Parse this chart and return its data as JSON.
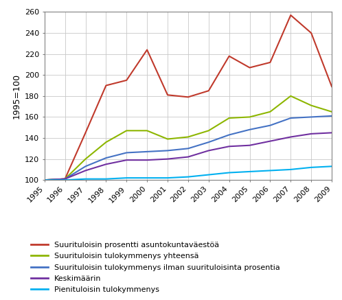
{
  "years": [
    1995,
    1996,
    1997,
    1998,
    1999,
    2000,
    2001,
    2002,
    2003,
    2004,
    2005,
    2006,
    2007,
    2008,
    2009
  ],
  "series": {
    "suurituloisin_prosentti": [
      100,
      101,
      145,
      190,
      195,
      224,
      181,
      179,
      185,
      218,
      207,
      212,
      257,
      240,
      189
    ],
    "suurituloisin_yhteensa": [
      100,
      101,
      120,
      136,
      147,
      147,
      139,
      141,
      147,
      159,
      160,
      165,
      180,
      171,
      165
    ],
    "suurituloisin_ilman": [
      100,
      101,
      113,
      121,
      126,
      127,
      128,
      130,
      136,
      143,
      148,
      152,
      159,
      160,
      161
    ],
    "keskimaarin": [
      100,
      101,
      109,
      115,
      119,
      119,
      120,
      122,
      128,
      132,
      133,
      137,
      141,
      144,
      145
    ],
    "pienituloisin": [
      100,
      100,
      101,
      101,
      102,
      102,
      102,
      103,
      105,
      107,
      108,
      109,
      110,
      112,
      113
    ]
  },
  "colors": {
    "suurituloisin_prosentti": "#c0392b",
    "suurituloisin_yhteensa": "#8db600",
    "suurituloisin_ilman": "#4472c4",
    "keskimaarin": "#7030a0",
    "pienituloisin": "#00b0f0"
  },
  "legend_labels": {
    "suurituloisin_prosentti": "Suurituloisin prosentti asuntokuntaväestöä",
    "suurituloisin_yhteensa": "Suurituloisin tulokymmenys yhteensä",
    "suurituloisin_ilman": "Suurituloisin tulokymmenys ilman suurituloisinta prosentia",
    "keskimaarin": "Keskimäärin",
    "pienituloisin": "Pienituloisin tulokymmenys"
  },
  "ylabel": "1995=100",
  "ylim": [
    100,
    260
  ],
  "yticks": [
    100,
    120,
    140,
    160,
    180,
    200,
    220,
    240,
    260
  ],
  "background_color": "#ffffff",
  "grid_color": "#c8c8c8",
  "linewidth": 1.5,
  "tick_fontsize": 8,
  "legend_fontsize": 8
}
